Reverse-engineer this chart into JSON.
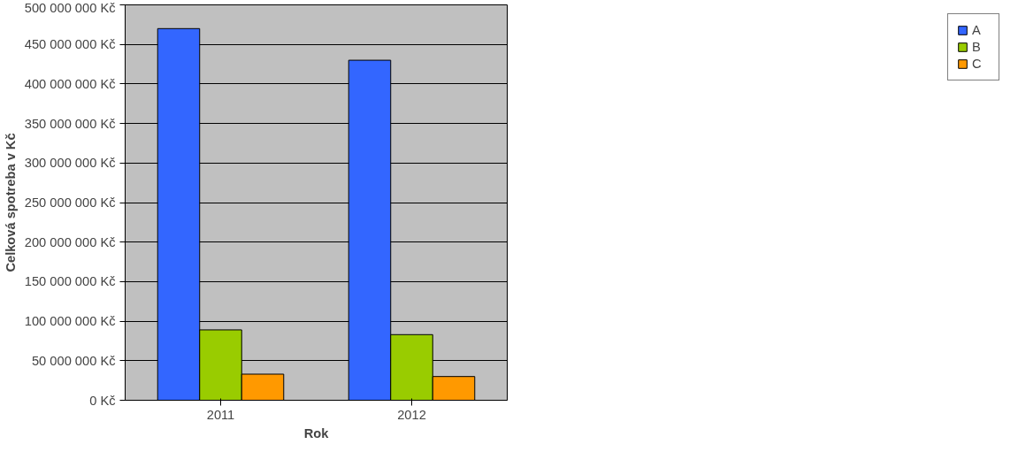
{
  "chart_data": {
    "type": "bar",
    "xlabel": "Rok",
    "ylabel": "Celková spotreba v Kč",
    "categories": [
      "2011",
      "2012"
    ],
    "series": [
      {
        "name": "A",
        "color": "#3366ff",
        "values": [
          470000000,
          430000000
        ]
      },
      {
        "name": "B",
        "color": "#99cc00",
        "values": [
          89000000,
          83000000
        ]
      },
      {
        "name": "C",
        "color": "#ff9900",
        "values": [
          33000000,
          30000000
        ]
      }
    ],
    "ylim": [
      0,
      500000000
    ],
    "yticks": [
      {
        "value": 0,
        "label": "0 Kč"
      },
      {
        "value": 50000000,
        "label": "50 000 000 Kč"
      },
      {
        "value": 100000000,
        "label": "100 000 000 Kč"
      },
      {
        "value": 150000000,
        "label": "150 000 000 Kč"
      },
      {
        "value": 200000000,
        "label": "200 000 000 Kč"
      },
      {
        "value": 250000000,
        "label": "250 000 000 Kč"
      },
      {
        "value": 300000000,
        "label": "300 000 000 Kč"
      },
      {
        "value": 350000000,
        "label": "350 000 000 Kč"
      },
      {
        "value": 400000000,
        "label": "400 000 000 Kč"
      },
      {
        "value": 450000000,
        "label": "450 000 000 Kč"
      },
      {
        "value": 500000000,
        "label": "500 000 000 Kč"
      }
    ],
    "grid": "y",
    "legend": "right"
  }
}
